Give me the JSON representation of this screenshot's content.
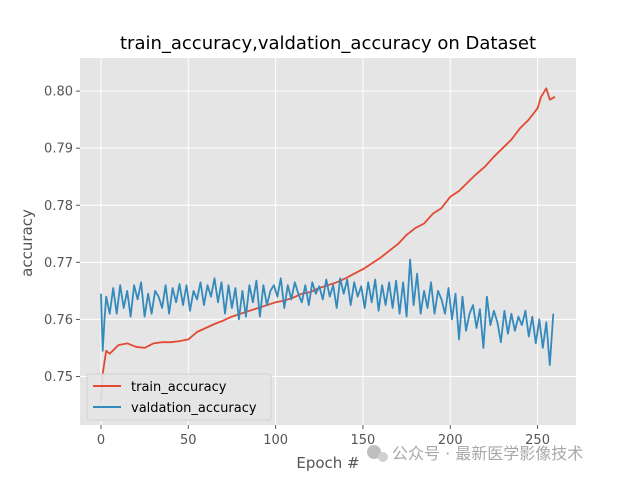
{
  "chart_data": {
    "type": "line",
    "title": "train_accuracy,valdation_accuracy on Dataset",
    "xlabel": "Epoch #",
    "ylabel": "accuracy",
    "xlim": [
      -12,
      272
    ],
    "ylim": [
      0.7415,
      0.8058
    ],
    "xticks": [
      0,
      50,
      100,
      150,
      200,
      250
    ],
    "yticks": [
      0.75,
      0.76,
      0.77,
      0.78,
      0.79,
      0.8
    ],
    "ytick_labels": [
      "0.75",
      "0.76",
      "0.77",
      "0.78",
      "0.79",
      "0.80"
    ],
    "grid": true,
    "legend_position": "lower-left",
    "series": [
      {
        "name": "train_accuracy",
        "color": "#E24A33",
        "x": [
          0,
          1,
          3,
          5,
          10,
          15,
          20,
          25,
          30,
          35,
          40,
          45,
          50,
          55,
          60,
          65,
          70,
          75,
          80,
          85,
          90,
          95,
          100,
          105,
          110,
          115,
          120,
          125,
          130,
          135,
          140,
          145,
          150,
          155,
          160,
          165,
          170,
          175,
          180,
          185,
          190,
          195,
          200,
          205,
          210,
          215,
          220,
          225,
          230,
          235,
          240,
          245,
          250,
          252,
          255,
          257,
          260
        ],
        "values": [
          0.7455,
          0.7505,
          0.7545,
          0.754,
          0.7555,
          0.7558,
          0.7552,
          0.755,
          0.7558,
          0.756,
          0.756,
          0.7562,
          0.7565,
          0.7578,
          0.7585,
          0.7592,
          0.7598,
          0.7605,
          0.761,
          0.7615,
          0.762,
          0.7625,
          0.763,
          0.7633,
          0.7638,
          0.7645,
          0.7648,
          0.7655,
          0.766,
          0.7665,
          0.7672,
          0.768,
          0.7688,
          0.7698,
          0.7708,
          0.772,
          0.7732,
          0.7748,
          0.776,
          0.7768,
          0.7785,
          0.7795,
          0.7815,
          0.7825,
          0.784,
          0.7855,
          0.7868,
          0.7885,
          0.79,
          0.7915,
          0.7935,
          0.795,
          0.797,
          0.799,
          0.8005,
          0.7985,
          0.799
        ]
      },
      {
        "name": "valdation_accuracy",
        "color": "#348ABD",
        "x": [
          0,
          1,
          2,
          3,
          5,
          7,
          9,
          11,
          13,
          15,
          17,
          19,
          21,
          23,
          25,
          27,
          29,
          31,
          33,
          35,
          37,
          39,
          41,
          43,
          45,
          47,
          49,
          51,
          53,
          55,
          57,
          59,
          61,
          63,
          65,
          67,
          69,
          71,
          73,
          75,
          77,
          79,
          81,
          83,
          85,
          87,
          89,
          91,
          93,
          95,
          97,
          99,
          101,
          103,
          105,
          107,
          109,
          111,
          113,
          115,
          117,
          119,
          121,
          123,
          125,
          127,
          129,
          131,
          133,
          135,
          137,
          139,
          141,
          143,
          145,
          147,
          149,
          151,
          153,
          155,
          157,
          159,
          161,
          163,
          165,
          167,
          169,
          171,
          173,
          175,
          177,
          179,
          181,
          183,
          185,
          187,
          189,
          191,
          193,
          195,
          197,
          199,
          201,
          203,
          205,
          207,
          209,
          211,
          213,
          215,
          217,
          219,
          221,
          223,
          225,
          227,
          229,
          231,
          233,
          235,
          237,
          239,
          241,
          243,
          245,
          247,
          249,
          251,
          253,
          255,
          257,
          259
        ],
        "values": [
          0.7645,
          0.7545,
          0.76,
          0.764,
          0.761,
          0.7655,
          0.761,
          0.766,
          0.762,
          0.765,
          0.7605,
          0.766,
          0.7635,
          0.7665,
          0.7605,
          0.7645,
          0.761,
          0.765,
          0.764,
          0.762,
          0.766,
          0.761,
          0.7655,
          0.763,
          0.7662,
          0.7625,
          0.766,
          0.7615,
          0.765,
          0.7635,
          0.7665,
          0.7625,
          0.766,
          0.764,
          0.7672,
          0.763,
          0.7665,
          0.761,
          0.766,
          0.762,
          0.7655,
          0.76,
          0.765,
          0.7605,
          0.766,
          0.763,
          0.7668,
          0.7605,
          0.766,
          0.7625,
          0.765,
          0.766,
          0.764,
          0.7672,
          0.762,
          0.766,
          0.7635,
          0.7665,
          0.7645,
          0.763,
          0.766,
          0.7625,
          0.7665,
          0.7645,
          0.7658,
          0.7635,
          0.767,
          0.764,
          0.766,
          0.762,
          0.7672,
          0.7645,
          0.767,
          0.7625,
          0.7665,
          0.764,
          0.7658,
          0.762,
          0.7665,
          0.763,
          0.767,
          0.7615,
          0.766,
          0.7625,
          0.7665,
          0.762,
          0.7668,
          0.761,
          0.7665,
          0.7605,
          0.7705,
          0.7625,
          0.768,
          0.761,
          0.765,
          0.762,
          0.7665,
          0.761,
          0.765,
          0.7635,
          0.761,
          0.7655,
          0.76,
          0.7645,
          0.7565,
          0.764,
          0.758,
          0.761,
          0.7625,
          0.7585,
          0.7618,
          0.755,
          0.764,
          0.759,
          0.7615,
          0.7595,
          0.756,
          0.7615,
          0.7575,
          0.761,
          0.758,
          0.7605,
          0.759,
          0.7615,
          0.757,
          0.7605,
          0.7558,
          0.76,
          0.755,
          0.7595,
          0.752,
          0.761
        ]
      }
    ]
  },
  "watermark": {
    "text": "公众号 · 最新医学影像技术"
  }
}
